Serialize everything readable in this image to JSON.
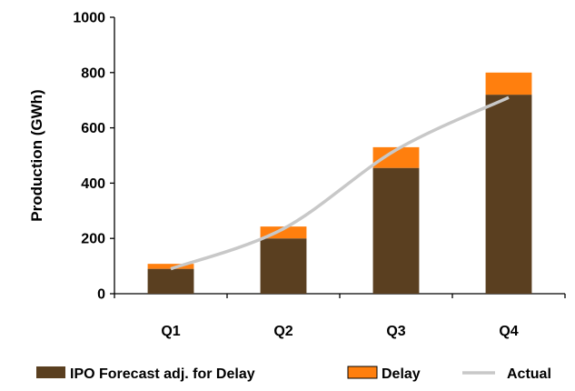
{
  "chart_data": {
    "type": "bar",
    "stacked": true,
    "categories": [
      "Q1",
      "Q2",
      "Q3",
      "Q4"
    ],
    "series": [
      {
        "name": "IPO Forecast adj. for Delay",
        "kind": "bar",
        "color": "#5a3f20",
        "values": [
          90,
          200,
          455,
          720
        ]
      },
      {
        "name": "Delay",
        "kind": "bar",
        "color": "#ff7f0e",
        "values": [
          18,
          43,
          75,
          80
        ]
      },
      {
        "name": "Actual",
        "kind": "line",
        "color": "#c8c8c8",
        "values": [
          90,
          235,
          520,
          710
        ]
      }
    ],
    "ylabel": "Production (GWh)",
    "xlabel": "",
    "ylim": [
      0,
      1000
    ],
    "yticks": [
      0,
      200,
      400,
      600,
      800,
      1000
    ],
    "grid": false,
    "legend": "bottom"
  }
}
